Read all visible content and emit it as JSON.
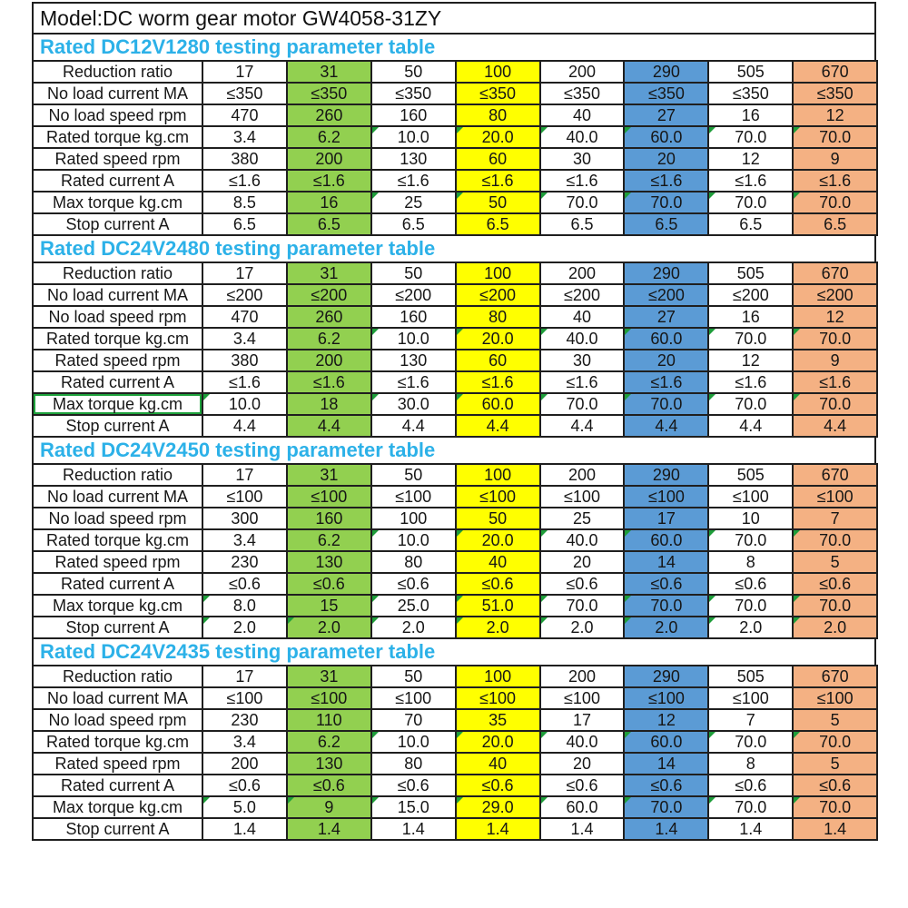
{
  "model_title": "Model:DC worm gear motor GW4058-31ZY",
  "colors": {
    "grid_line": "#1f1f1f",
    "header_cyan": "#2cb1e8",
    "green_fill": "#92d050",
    "yellow_fill": "#ffff00",
    "blue_fill": "#5b9bd5",
    "salmon_fill": "#f4b183",
    "blue_text": "#17375d",
    "salmon_text": "#7c3a20",
    "flag_green": "#1e9e3a",
    "selection_green": "#1ea33c"
  },
  "row_labels": [
    "Reduction ratio",
    "No load current MA",
    "No load speed rpm",
    "Rated torque kg.cm",
    "Rated speed rpm",
    "Rated current A",
    "Max torque kg.cm",
    "Stop current A"
  ],
  "column_styles": [
    "plain",
    "green",
    "plain",
    "yellow",
    "plain",
    "blue",
    "plain",
    "salmon"
  ],
  "tables": [
    {
      "title": "Rated DC12V1280 testing parameter table",
      "rows": [
        [
          "17",
          "31",
          "50",
          "100",
          "200",
          "290",
          "505",
          "670"
        ],
        [
          "≤350",
          "≤350",
          "≤350",
          "≤350",
          "≤350",
          "≤350",
          "≤350",
          "≤350"
        ],
        [
          "470",
          "260",
          "160",
          "80",
          "40",
          "27",
          "16",
          "12"
        ],
        [
          "3.4",
          "6.2",
          "10.0",
          "20.0",
          "40.0",
          "60.0",
          "70.0",
          "70.0"
        ],
        [
          "380",
          "200",
          "130",
          "60",
          "30",
          "20",
          "12",
          "9"
        ],
        [
          "≤1.6",
          "≤1.6",
          "≤1.6",
          "≤1.6",
          "≤1.6",
          "≤1.6",
          "≤1.6",
          "≤1.6"
        ],
        [
          "8.5",
          "16",
          "25",
          "50",
          "70.0",
          "70.0",
          "70.0",
          "70.0"
        ],
        [
          "6.5",
          "6.5",
          "6.5",
          "6.5",
          "6.5",
          "6.5",
          "6.5",
          "6.5"
        ]
      ],
      "flags": [
        [
          3,
          2
        ],
        [
          3,
          3
        ],
        [
          3,
          4
        ],
        [
          3,
          5
        ],
        [
          3,
          6
        ],
        [
          3,
          7
        ],
        [
          6,
          2
        ],
        [
          6,
          3
        ],
        [
          6,
          4
        ],
        [
          6,
          5
        ],
        [
          6,
          6
        ],
        [
          6,
          7
        ]
      ]
    },
    {
      "title": "Rated DC24V2480 testing parameter table",
      "rows": [
        [
          "17",
          "31",
          "50",
          "100",
          "200",
          "290",
          "505",
          "670"
        ],
        [
          "≤200",
          "≤200",
          "≤200",
          "≤200",
          "≤200",
          "≤200",
          "≤200",
          "≤200"
        ],
        [
          "470",
          "260",
          "160",
          "80",
          "40",
          "27",
          "16",
          "12"
        ],
        [
          "3.4",
          "6.2",
          "10.0",
          "20.0",
          "40.0",
          "60.0",
          "70.0",
          "70.0"
        ],
        [
          "380",
          "200",
          "130",
          "60",
          "30",
          "20",
          "12",
          "9"
        ],
        [
          "≤1.6",
          "≤1.6",
          "≤1.6",
          "≤1.6",
          "≤1.6",
          "≤1.6",
          "≤1.6",
          "≤1.6"
        ],
        [
          "10.0",
          "18",
          "30.0",
          "60.0",
          "70.0",
          "70.0",
          "70.0",
          "70.0"
        ],
        [
          "4.4",
          "4.4",
          "4.4",
          "4.4",
          "4.4",
          "4.4",
          "4.4",
          "4.4"
        ]
      ],
      "flags": [
        [
          3,
          2
        ],
        [
          3,
          3
        ],
        [
          3,
          4
        ],
        [
          3,
          5
        ],
        [
          3,
          6
        ],
        [
          3,
          7
        ],
        [
          6,
          0
        ],
        [
          6,
          2
        ],
        [
          6,
          3
        ],
        [
          6,
          4
        ],
        [
          6,
          5
        ],
        [
          6,
          6
        ],
        [
          6,
          7
        ]
      ],
      "selected_label_row": 6
    },
    {
      "title": "Rated DC24V2450 testing parameter table",
      "rows": [
        [
          "17",
          "31",
          "50",
          "100",
          "200",
          "290",
          "505",
          "670"
        ],
        [
          "≤100",
          "≤100",
          "≤100",
          "≤100",
          "≤100",
          "≤100",
          "≤100",
          "≤100"
        ],
        [
          "300",
          "160",
          "100",
          "50",
          "25",
          "17",
          "10",
          "7"
        ],
        [
          "3.4",
          "6.2",
          "10.0",
          "20.0",
          "40.0",
          "60.0",
          "70.0",
          "70.0"
        ],
        [
          "230",
          "130",
          "80",
          "40",
          "20",
          "14",
          "8",
          "5"
        ],
        [
          "≤0.6",
          "≤0.6",
          "≤0.6",
          "≤0.6",
          "≤0.6",
          "≤0.6",
          "≤0.6",
          "≤0.6"
        ],
        [
          "8.0",
          "15",
          "25.0",
          "51.0",
          "70.0",
          "70.0",
          "70.0",
          "70.0"
        ],
        [
          "2.0",
          "2.0",
          "2.0",
          "2.0",
          "2.0",
          "2.0",
          "2.0",
          "2.0"
        ]
      ],
      "flags": [
        [
          3,
          2
        ],
        [
          3,
          3
        ],
        [
          3,
          4
        ],
        [
          3,
          5
        ],
        [
          3,
          6
        ],
        [
          3,
          7
        ],
        [
          6,
          0
        ],
        [
          6,
          2
        ],
        [
          6,
          3
        ],
        [
          6,
          4
        ],
        [
          6,
          5
        ],
        [
          6,
          6
        ],
        [
          6,
          7
        ],
        [
          7,
          0
        ],
        [
          7,
          1
        ],
        [
          7,
          2
        ],
        [
          7,
          3
        ],
        [
          7,
          4
        ],
        [
          7,
          5
        ],
        [
          7,
          6
        ],
        [
          7,
          7
        ]
      ]
    },
    {
      "title": "Rated DC24V2435 testing parameter table",
      "rows": [
        [
          "17",
          "31",
          "50",
          "100",
          "200",
          "290",
          "505",
          "670"
        ],
        [
          "≤100",
          "≤100",
          "≤100",
          "≤100",
          "≤100",
          "≤100",
          "≤100",
          "≤100"
        ],
        [
          "230",
          "110",
          "70",
          "35",
          "17",
          "12",
          "7",
          "5"
        ],
        [
          "3.4",
          "6.2",
          "10.0",
          "20.0",
          "40.0",
          "60.0",
          "70.0",
          "70.0"
        ],
        [
          "200",
          "130",
          "80",
          "40",
          "20",
          "14",
          "8",
          "5"
        ],
        [
          "≤0.6",
          "≤0.6",
          "≤0.6",
          "≤0.6",
          "≤0.6",
          "≤0.6",
          "≤0.6",
          "≤0.6"
        ],
        [
          "5.0",
          "9",
          "15.0",
          "29.0",
          "60.0",
          "70.0",
          "70.0",
          "70.0"
        ],
        [
          "1.4",
          "1.4",
          "1.4",
          "1.4",
          "1.4",
          "1.4",
          "1.4",
          "1.4"
        ]
      ],
      "flags": [
        [
          3,
          2
        ],
        [
          3,
          3
        ],
        [
          3,
          4
        ],
        [
          3,
          5
        ],
        [
          3,
          6
        ],
        [
          3,
          7
        ],
        [
          6,
          0
        ],
        [
          6,
          1
        ],
        [
          6,
          2
        ],
        [
          6,
          3
        ],
        [
          6,
          4
        ],
        [
          6,
          5
        ],
        [
          6,
          6
        ],
        [
          6,
          7
        ]
      ]
    }
  ]
}
